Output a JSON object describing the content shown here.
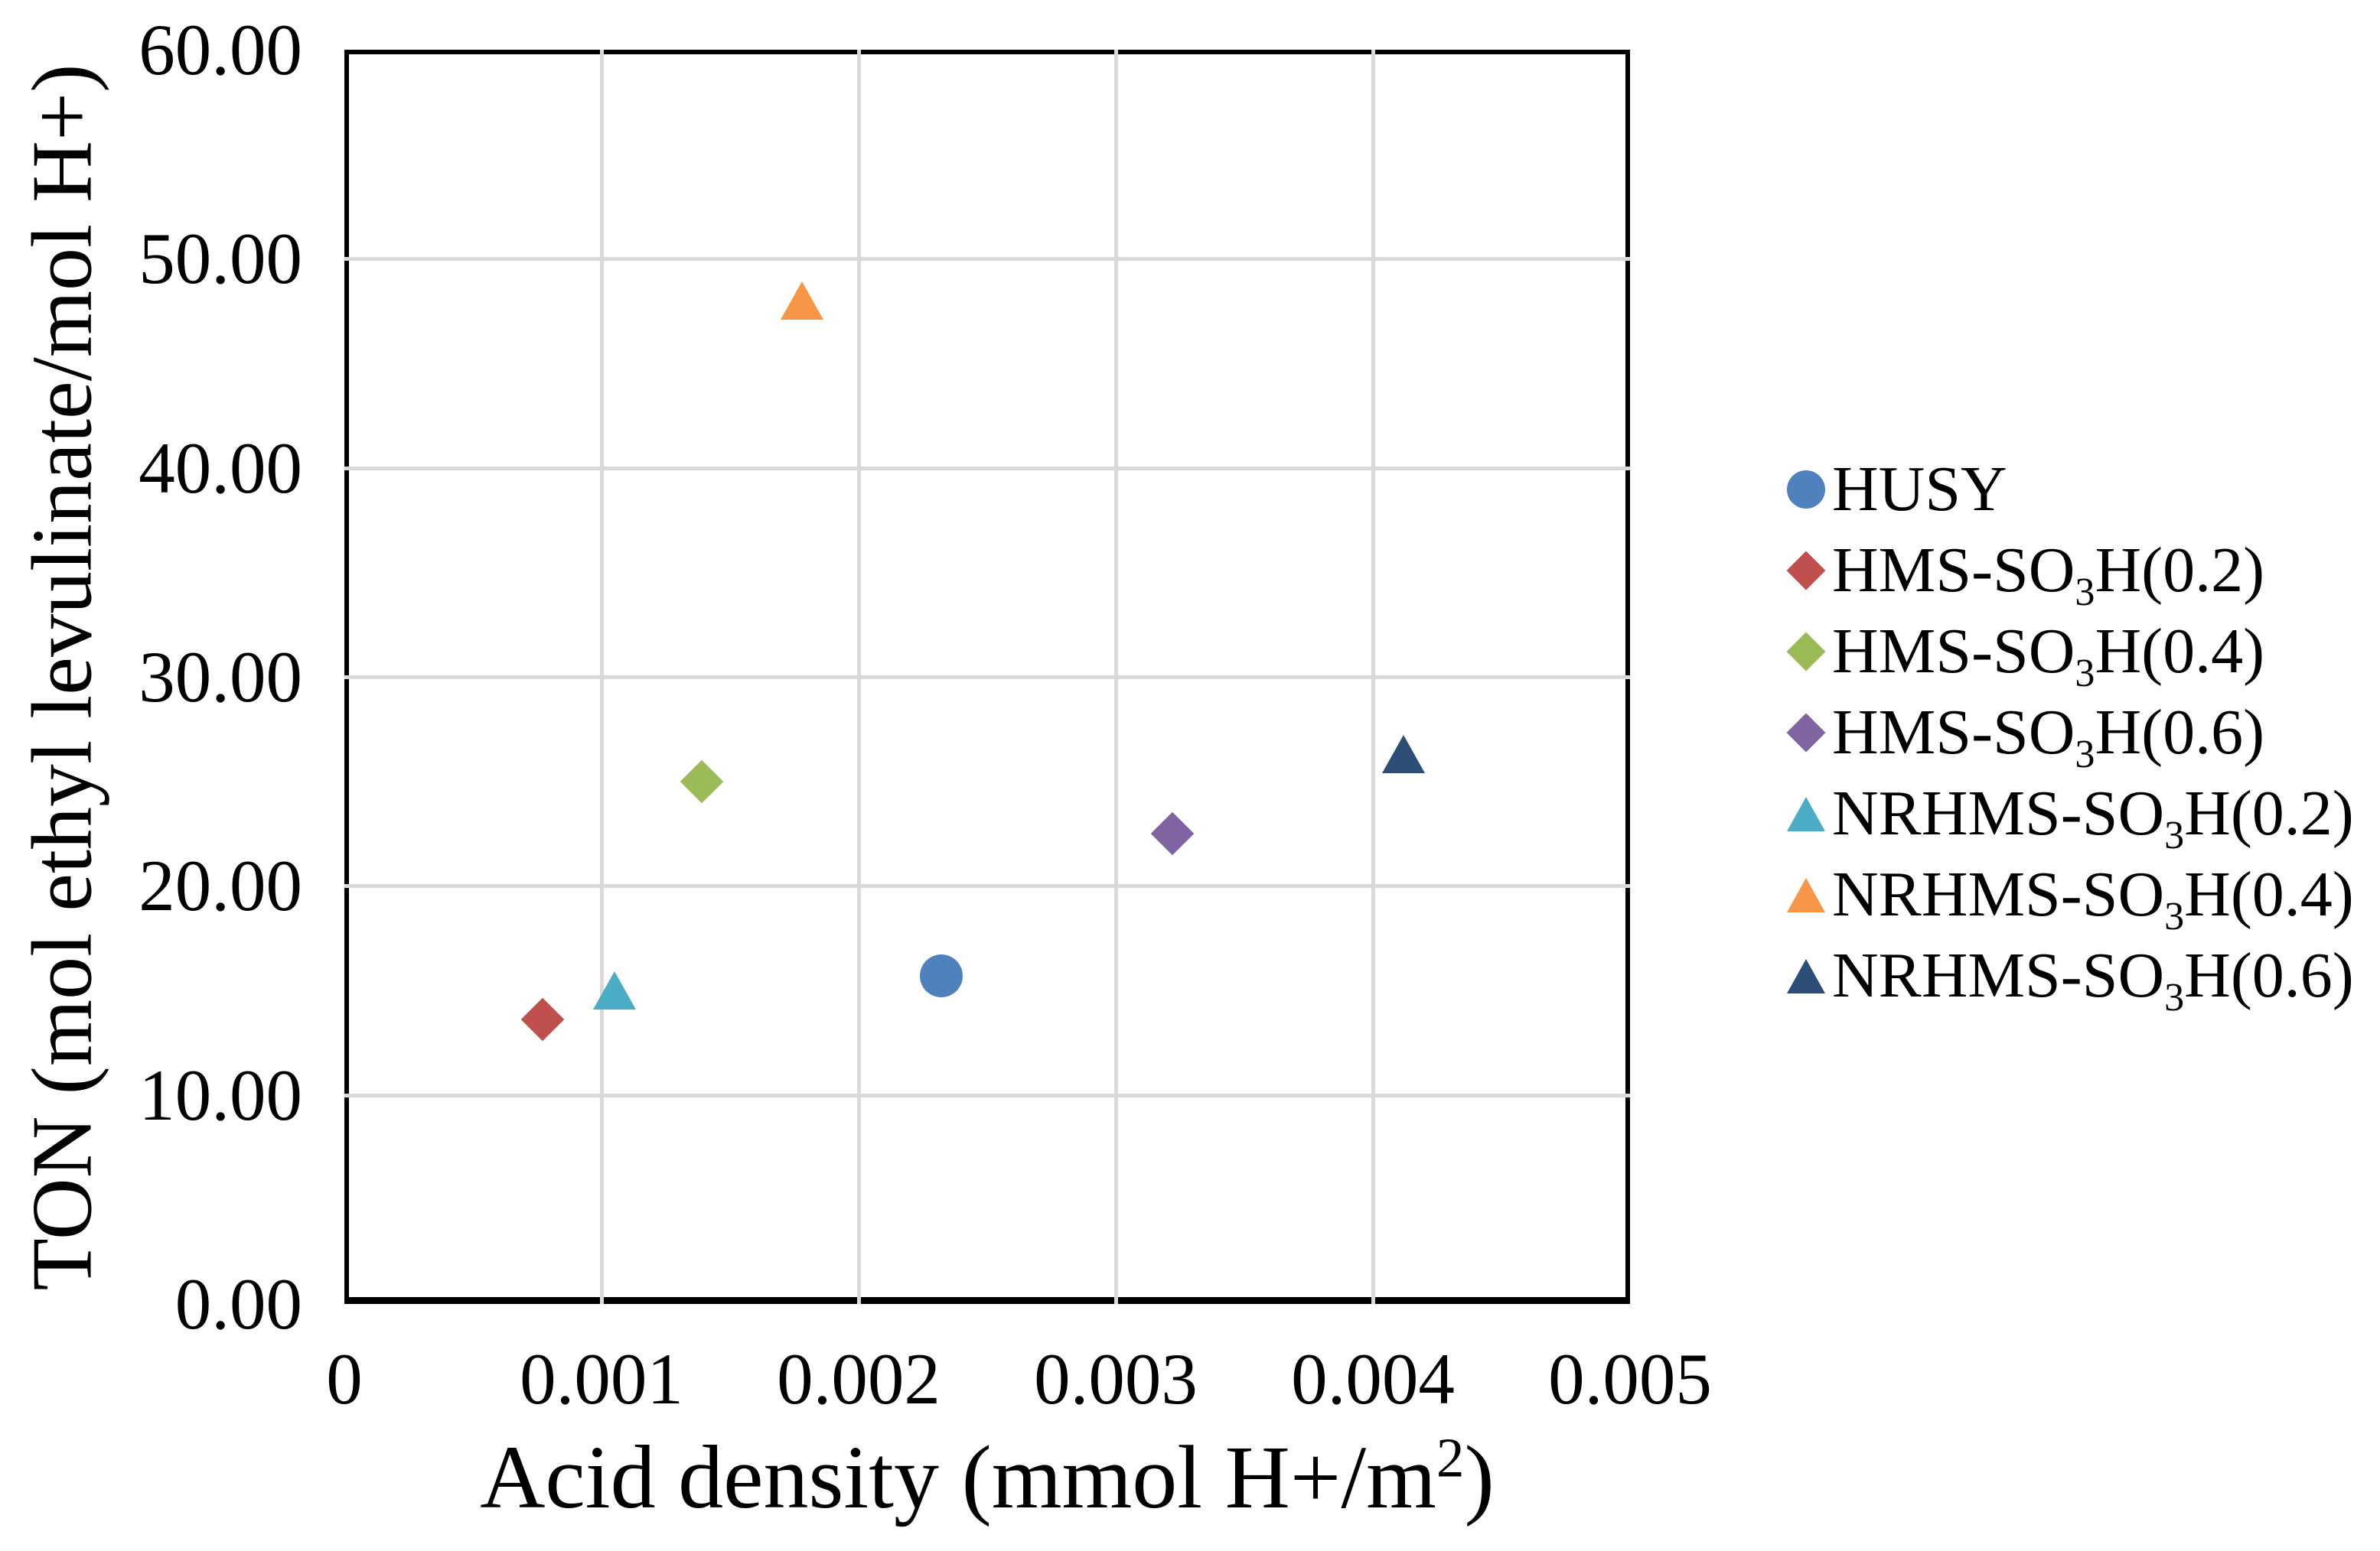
{
  "chart_data": {
    "type": "scatter",
    "title": "",
    "xlabel_pre": "Acid density (mmol H+/m",
    "xlabel_sup": "2",
    "xlabel_post": ")",
    "ylabel": "TON (mol ethyl levulinate/mol H+)",
    "xlim": [
      0,
      0.005
    ],
    "ylim": [
      0,
      60
    ],
    "x_tick_values": [
      0,
      0.001,
      0.002,
      0.003,
      0.004,
      0.005
    ],
    "x_tick_labels": [
      "0",
      "0.001",
      "0.002",
      "0.003",
      "0.004",
      "0.005"
    ],
    "y_tick_values": [
      0,
      10,
      20,
      30,
      40,
      50,
      60
    ],
    "y_tick_labels": [
      "0.00",
      "10.00",
      "20.00",
      "30.00",
      "40.00",
      "50.00",
      "60.00"
    ],
    "grid": true,
    "gridline_color": "#d9d9d9",
    "axis_color": "#000000",
    "background_color": "#ffffff",
    "legend_position": "right",
    "series": [
      {
        "label_pre": "HUSY",
        "label_sub": "",
        "label_post": "",
        "marker": "circle",
        "color": "#4F81BD",
        "x": 0.00232,
        "y": 15.7
      },
      {
        "label_pre": "HMS-SO",
        "label_sub": "3",
        "label_post": "H(0.2)",
        "marker": "diamond",
        "color": "#C0504D",
        "x": 0.00077,
        "y": 13.6
      },
      {
        "label_pre": "HMS-SO",
        "label_sub": "3",
        "label_post": "H(0.4)",
        "marker": "diamond",
        "color": "#9BBB59",
        "x": 0.00139,
        "y": 25.0
      },
      {
        "label_pre": "HMS-SO",
        "label_sub": "3",
        "label_post": "H(0.6)",
        "marker": "diamond",
        "color": "#8064A2",
        "x": 0.00322,
        "y": 22.5
      },
      {
        "label_pre": "NRHMS-SO",
        "label_sub": "3",
        "label_post": "H(0.2)",
        "marker": "triangle",
        "color": "#4BACC6",
        "x": 0.00105,
        "y": 15.0
      },
      {
        "label_pre": "NRHMS-SO",
        "label_sub": "3",
        "label_post": "H(0.4)",
        "marker": "triangle",
        "color": "#F79646",
        "x": 0.00178,
        "y": 48.0
      },
      {
        "label_pre": "NRHMS-SO",
        "label_sub": "3",
        "label_post": "H(0.6)",
        "marker": "triangle",
        "color": "#2C4D75",
        "x": 0.00412,
        "y": 26.3
      }
    ]
  }
}
